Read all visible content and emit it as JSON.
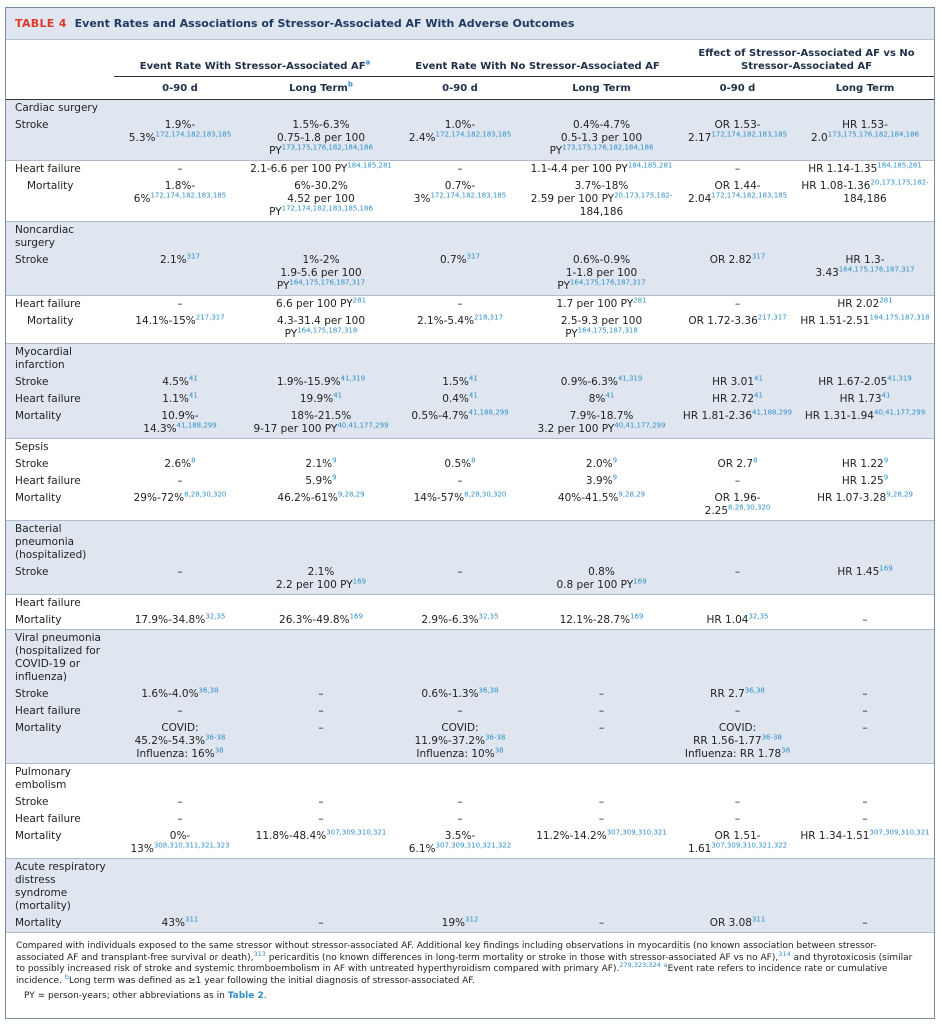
{
  "table": {
    "label": "TABLE 4",
    "title": "Event Rates and Associations of Stressor-Associated AF With Adverse Outcomes",
    "group_headers": [
      "Event Rate With Stressor-Associated AF",
      "Event Rate With No Stressor-Associated AF",
      "Effect of Stressor-Associated AF vs No Stressor-Associated AF"
    ],
    "group_header_sup": "a",
    "sub_headers": [
      "0-90 d",
      "Long Term",
      "0-90 d",
      "Long Term",
      "0-90 d",
      "Long Term"
    ],
    "long_term_sup": "b",
    "rows": [
      {
        "label": "Cardiac surgery",
        "section": true,
        "band": "b",
        "first": true
      },
      {
        "label": "Stroke",
        "band": "b",
        "cells": [
          [
            "1.9%-",
            "5.3%|172,174,182,183,185"
          ],
          [
            "1.5%-6.3%",
            "0.75-1.8 per 100",
            "PY|173,175,176,182,184,186"
          ],
          [
            "1.0%-",
            "2.4%|172,174,182,183,185"
          ],
          [
            "0.4%-4.7%",
            "0.5-1.3 per 100",
            "PY|173,175,176,182,184,186"
          ],
          [
            "OR 1.53-",
            "2.17|172,174,182,183,185"
          ],
          [
            "HR 1.53-",
            "2.0|173,175,176,182,184,186"
          ]
        ]
      },
      {
        "label": "Heart failure",
        "band": "w",
        "first": true,
        "cells": [
          [
            "–"
          ],
          [
            "2.1-6.6 per 100 PY|184,185,281"
          ],
          [
            "–"
          ],
          [
            "1.1-4.4 per 100 PY|184,185,281"
          ],
          [
            "–"
          ],
          [
            "HR 1.14-1.35|184,185,281"
          ]
        ]
      },
      {
        "label": "Mortality",
        "band": "w",
        "sub": true,
        "cells": [
          [
            "1.8%-",
            "6%|172,174,182,183,185"
          ],
          [
            "6%-30.2%",
            "4.52 per 100",
            "PY|172,174,182,183,185,186"
          ],
          [
            "0.7%-",
            "3%|172,174,182,183,185"
          ],
          [
            "3.7%-18%",
            "2.59 per 100 PY|20,173,175,182-",
            "184,186"
          ],
          [
            "OR 1.44-",
            "2.04|172,174,182,183,185"
          ],
          [
            "HR 1.08-1.36|20,173,175,182-",
            "184,186"
          ]
        ]
      },
      {
        "label": "Noncardiac surgery",
        "section": true,
        "band": "b",
        "first": true
      },
      {
        "label": "Stroke",
        "band": "b",
        "cells": [
          [
            "2.1%|317"
          ],
          [
            "1%-2%",
            "1.9-5.6 per 100",
            "PY|164,175,176,187,317"
          ],
          [
            "0.7%|317"
          ],
          [
            "0.6%-0.9%",
            "1-1.8 per 100",
            "PY|164,175,176,187,317"
          ],
          [
            "OR 2.82|317"
          ],
          [
            "HR 1.3-",
            "3.43|164,175,176,187,317"
          ]
        ]
      },
      {
        "label": "Heart failure",
        "band": "w",
        "first": true,
        "cells": [
          [
            "–"
          ],
          [
            "6.6 per 100 PY|281"
          ],
          [
            "–"
          ],
          [
            "1.7 per 100 PY|281"
          ],
          [
            "–"
          ],
          [
            "HR 2.02|281"
          ]
        ]
      },
      {
        "label": "Mortality",
        "band": "w",
        "sub": true,
        "cells": [
          [
            "14.1%-15%|217,317"
          ],
          [
            "4.3-31.4 per 100",
            "PY|164,175,187,318"
          ],
          [
            "2.1%-5.4%|218,317"
          ],
          [
            "2.5-9.3 per 100",
            "PY|164,175,187,318"
          ],
          [
            "OR 1.72-3.36|217,317"
          ],
          [
            "HR 1.51-2.51|164,175,187,318"
          ]
        ]
      },
      {
        "label": "Myocardial infarction",
        "section": true,
        "band": "b",
        "first": true
      },
      {
        "label": "Stroke",
        "band": "b",
        "cells": [
          [
            "4.5%|41"
          ],
          [
            "1.9%-15.9%|41,319"
          ],
          [
            "1.5%|41"
          ],
          [
            "0.9%-6.3%|41,319"
          ],
          [
            "HR 3.01|41"
          ],
          [
            "HR 1.67-2.05|41,319"
          ]
        ]
      },
      {
        "label": "Heart failure",
        "band": "b",
        "cells": [
          [
            "1.1%|41"
          ],
          [
            "19.9%|41"
          ],
          [
            "0.4%|41"
          ],
          [
            "8%|41"
          ],
          [
            "HR 2.72|41"
          ],
          [
            "HR 1.73|41"
          ]
        ]
      },
      {
        "label": "Mortality",
        "band": "b",
        "cells": [
          [
            "10.9%-",
            "14.3%|41,188,299"
          ],
          [
            "18%-21.5%",
            "9-17 per 100 PY|40,41,177,299"
          ],
          [
            "0.5%-4.7%|41,188,299"
          ],
          [
            "7.9%-18.7%",
            "3.2 per 100 PY|40,41,177,299"
          ],
          [
            "HR 1.81-2.36|41,188,299"
          ],
          [
            "HR 1.31-1.94|40,41,177,299"
          ]
        ]
      },
      {
        "label": "Sepsis",
        "section": true,
        "band": "w",
        "first": true
      },
      {
        "label": "Stroke",
        "band": "w",
        "cells": [
          [
            "2.6%|8"
          ],
          [
            "2.1%|9"
          ],
          [
            "0.5%|8"
          ],
          [
            "2.0%|9"
          ],
          [
            "OR 2.7|8"
          ],
          [
            "HR 1.22|9"
          ]
        ]
      },
      {
        "label": "Heart failure",
        "band": "w",
        "cells": [
          [
            "–"
          ],
          [
            "5.9%|9"
          ],
          [
            "–"
          ],
          [
            "3.9%|9"
          ],
          [
            "–"
          ],
          [
            "HR 1.25|9"
          ]
        ]
      },
      {
        "label": "Mortality",
        "band": "w",
        "cells": [
          [
            "29%-72%|8,28,30,320"
          ],
          [
            "46.2%-61%|9,28,29"
          ],
          [
            "14%-57%|8,28,30,320"
          ],
          [
            "40%-41.5%|9,28,29"
          ],
          [
            "OR 1.96-2.25|8,28,30,320"
          ],
          [
            "HR 1.07-3.28|9,28,29"
          ]
        ]
      },
      {
        "label": "Bacterial pneumonia (hospitalized)",
        "section": true,
        "band": "b",
        "first": true
      },
      {
        "label": "Stroke",
        "band": "b",
        "cells": [
          [
            "–"
          ],
          [
            "2.1%",
            "2.2 per 100 PY|169"
          ],
          [
            "–"
          ],
          [
            "0.8%",
            "0.8 per 100 PY|169"
          ],
          [
            "–"
          ],
          [
            "HR 1.45|169"
          ]
        ]
      },
      {
        "label": "Heart failure",
        "section": true,
        "band": "w",
        "first": true
      },
      {
        "label": "Mortality",
        "band": "w",
        "cells": [
          [
            "17.9%-34.8%|32,35"
          ],
          [
            "26.3%-49.8%|169"
          ],
          [
            "2.9%-6.3%|32,35"
          ],
          [
            "12.1%-28.7%|169"
          ],
          [
            "HR 1.04|32,35"
          ],
          [
            "–"
          ]
        ]
      },
      {
        "label": "Viral pneumonia (hospitalized for COVID-19 or influenza)",
        "section": true,
        "band": "b",
        "first": true
      },
      {
        "label": "Stroke",
        "band": "b",
        "cells": [
          [
            "1.6%-4.0%|36,38"
          ],
          [
            "–"
          ],
          [
            "0.6%-1.3%|36,38"
          ],
          [
            "–"
          ],
          [
            "RR 2.7|36,38"
          ],
          [
            "–"
          ]
        ]
      },
      {
        "label": "Heart failure",
        "band": "b",
        "cells": [
          [
            "–"
          ],
          [
            "–"
          ],
          [
            "–"
          ],
          [
            "–"
          ],
          [
            "–"
          ],
          [
            "–"
          ]
        ]
      },
      {
        "label": "Mortality",
        "band": "b",
        "cells": [
          [
            "COVID:",
            "45.2%-54.3%|36-38",
            "Influenza: 16%|38"
          ],
          [
            "–"
          ],
          [
            "COVID:",
            "11.9%-37.2%|36-38",
            "Influenza: 10%|38"
          ],
          [
            "–"
          ],
          [
            "COVID:",
            "RR 1.56-1.77|36-38",
            "Influenza: RR 1.78|38"
          ],
          [
            "–"
          ]
        ]
      },
      {
        "label": "Pulmonary embolism",
        "section": true,
        "band": "w",
        "first": true
      },
      {
        "label": "Stroke",
        "band": "w",
        "cells": [
          [
            "–"
          ],
          [
            "–"
          ],
          [
            "–"
          ],
          [
            "–"
          ],
          [
            "–"
          ],
          [
            "–"
          ]
        ]
      },
      {
        "label": "Heart failure",
        "band": "w",
        "cells": [
          [
            "–"
          ],
          [
            "–"
          ],
          [
            "–"
          ],
          [
            "–"
          ],
          [
            "–"
          ],
          [
            "–"
          ]
        ]
      },
      {
        "label": "Mortality",
        "band": "w",
        "cells": [
          [
            "0%-",
            "13%|308,310,311,321,323"
          ],
          [
            "11.8%-48.4%|307,309,310,321"
          ],
          [
            "3.5%-",
            "6.1%|307,309,310,321,322"
          ],
          [
            "11.2%-14.2%|307,309,310,321"
          ],
          [
            "OR 1.51-",
            "1.61|307,309,310,321,322"
          ],
          [
            "HR 1.34-1.51|307,309,310,321"
          ]
        ]
      },
      {
        "label": "Acute respiratory distress syndrome (mortality)",
        "section": true,
        "band": "b",
        "first": true
      },
      {
        "label": "Mortality",
        "band": "b",
        "cells": [
          [
            "43%|311"
          ],
          [
            "–"
          ],
          [
            "19%|312"
          ],
          [
            "–"
          ],
          [
            "OR 3.08|311"
          ],
          [
            "–"
          ]
        ]
      }
    ]
  },
  "footnote": {
    "text_parts": [
      [
        "Compared with individuals exposed to the same stressor without stressor-associated AF. Additional key findings including observations in myocarditis (no known association between stressor-associated AF and transplant-free survival or death),",
        "313"
      ],
      [
        " pericarditis (no known differences in long-term mortality or stroke in those with stressor-associated AF vs no AF),",
        "314"
      ],
      [
        " and thyrotoxicosis (similar to possibly increased risk of stroke and systemic thromboembolism in AF with untreated hyperthyroidism compared with primary AF).",
        "279,323,324"
      ],
      [
        " ",
        "a"
      ],
      [
        "Event rate refers to incidence rate or cumulative incidence. ",
        "b"
      ],
      [
        "Long term was defined as ≥1 year following the initial diagnosis of stressor-associated AF.",
        ""
      ]
    ],
    "py_line": "PY = person-years; other abbreviations as in",
    "py_link": "Table 2",
    "py_end": "."
  }
}
